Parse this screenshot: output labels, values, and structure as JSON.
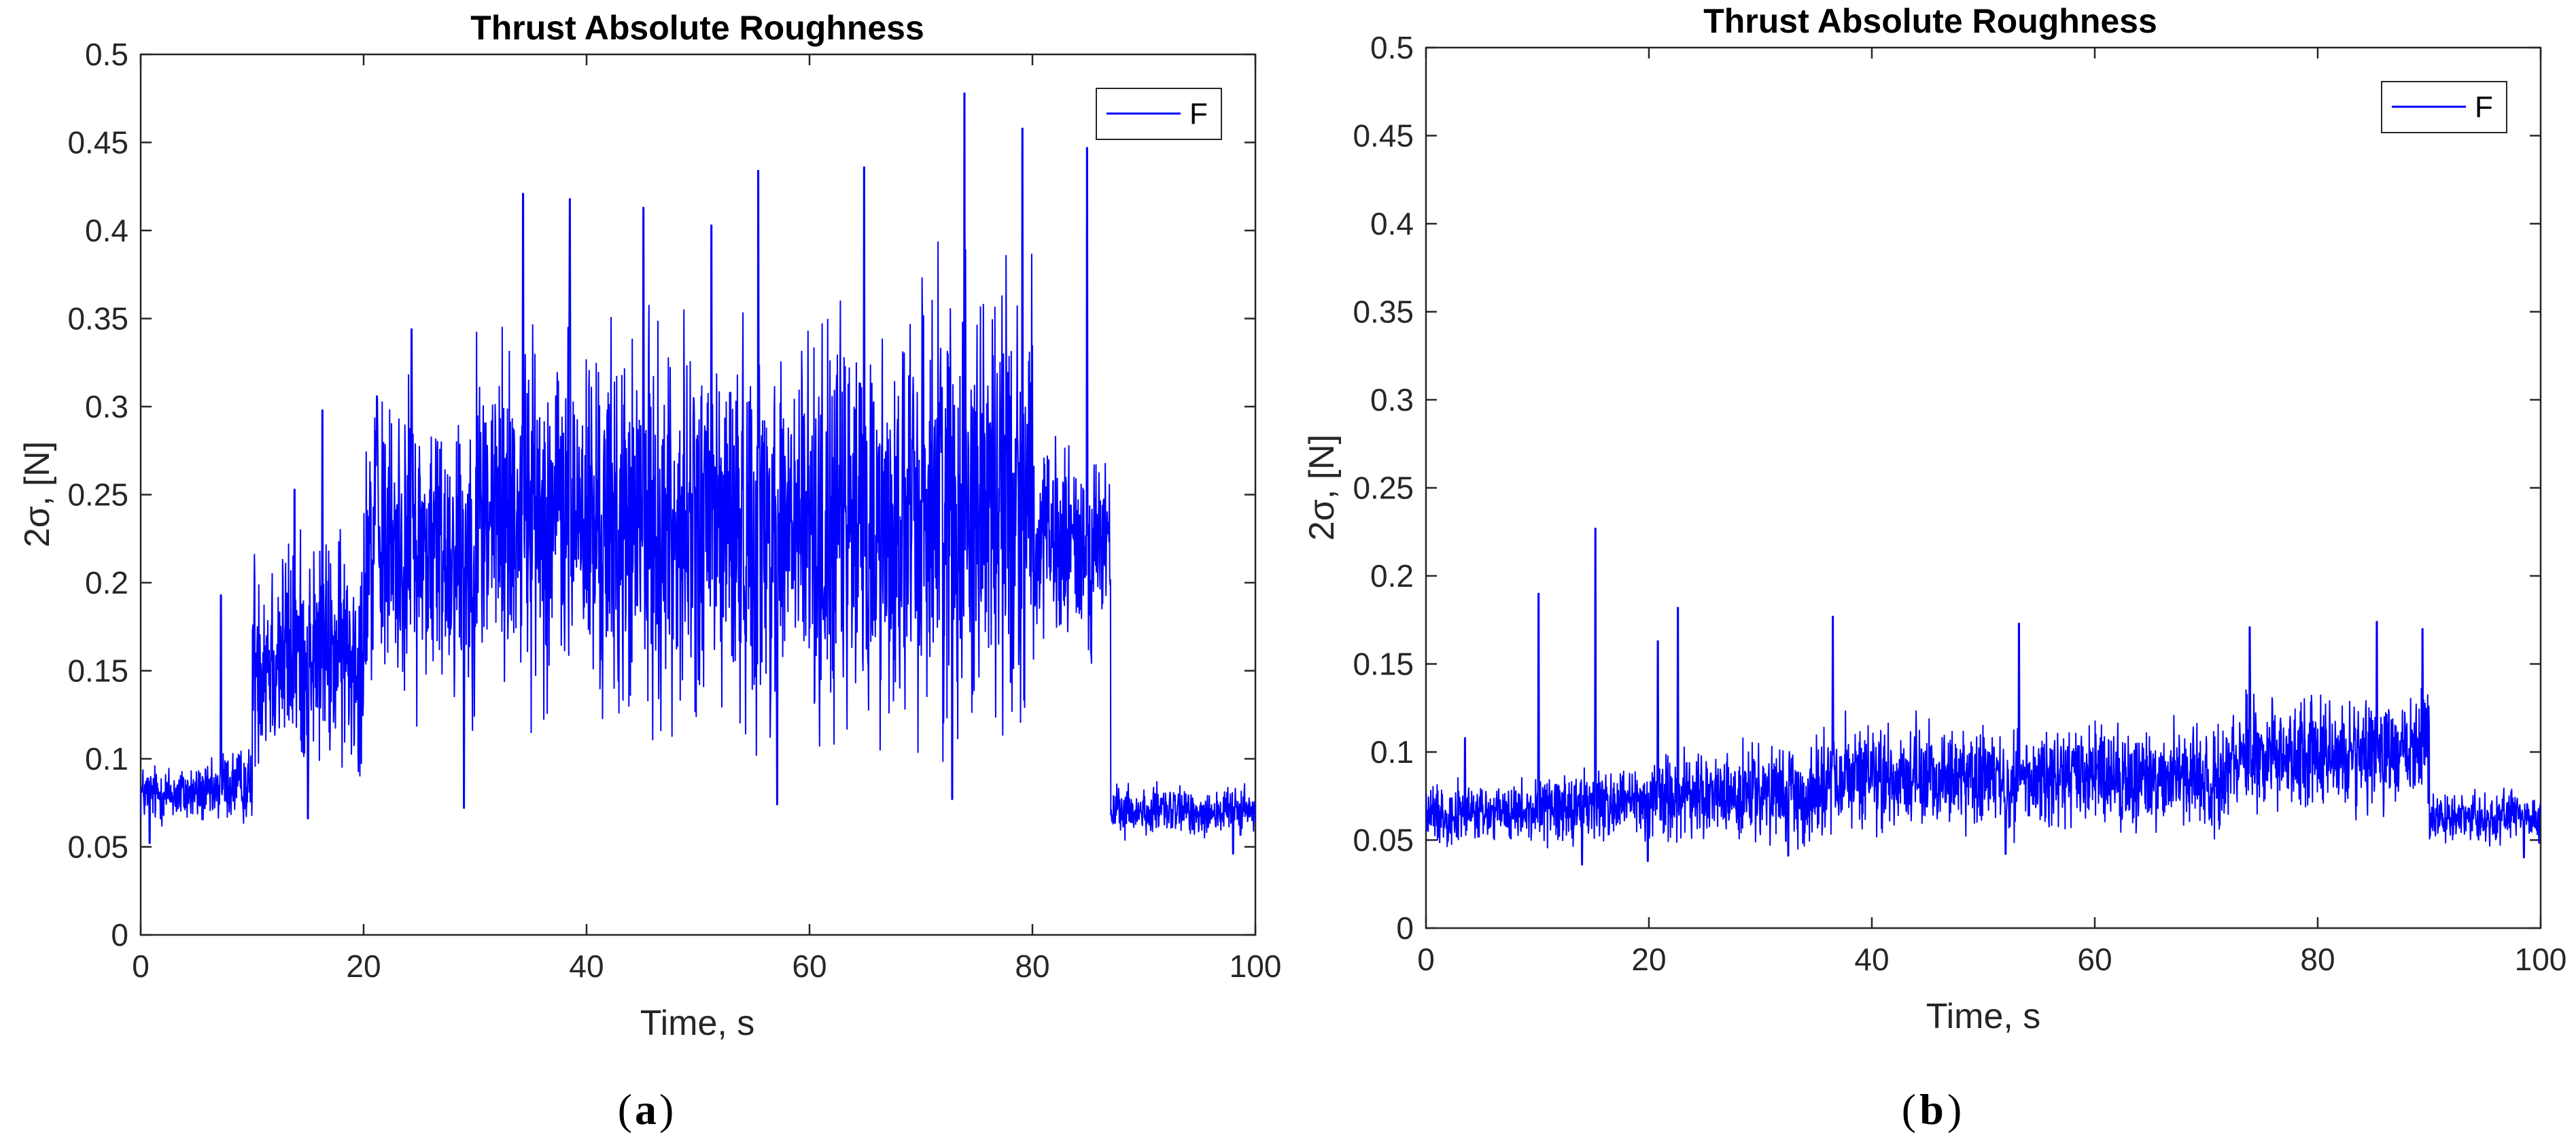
{
  "chart_data": [
    {
      "type": "line",
      "panel_label": "a",
      "title": "Thrust Absolute Roughness",
      "xlabel": "Time, s",
      "ylabel": "2σ, [N]",
      "xlim": [
        0,
        100
      ],
      "ylim": [
        0,
        0.5
      ],
      "xticks": [
        "0",
        "20",
        "40",
        "60",
        "80",
        "100"
      ],
      "yticks": [
        "0",
        "0.05",
        "0.1",
        "0.15",
        "0.2",
        "0.25",
        "0.3",
        "0.35",
        "0.4",
        "0.45",
        "0.5"
      ],
      "legend": {
        "entries": [
          "F"
        ],
        "location": "top-right"
      },
      "grid": false,
      "line_color": "#0000FF",
      "series": [
        {
          "name": "F",
          "segments": [
            {
              "t_start": 0,
              "t_end": 7,
              "mean": 0.08,
              "spread": 0.012
            },
            {
              "t_start": 7,
              "t_end": 10,
              "mean": 0.085,
              "spread": 0.015
            },
            {
              "t_start": 10,
              "t_end": 20,
              "mean": 0.16,
              "spread": 0.045
            },
            {
              "t_start": 20,
              "t_end": 30,
              "mean": 0.22,
              "spread": 0.06
            },
            {
              "t_start": 30,
              "t_end": 40,
              "mean": 0.24,
              "spread": 0.07
            },
            {
              "t_start": 40,
              "t_end": 50,
              "mean": 0.23,
              "spread": 0.075
            },
            {
              "t_start": 50,
              "t_end": 60,
              "mean": 0.23,
              "spread": 0.075
            },
            {
              "t_start": 60,
              "t_end": 70,
              "mean": 0.23,
              "spread": 0.08
            },
            {
              "t_start": 70,
              "t_end": 80,
              "mean": 0.25,
              "spread": 0.09
            },
            {
              "t_start": 80,
              "t_end": 87,
              "mean": 0.22,
              "spread": 0.04
            },
            {
              "t_start": 87,
              "t_end": 100,
              "mean": 0.07,
              "spread": 0.01
            }
          ],
          "peaks": [
            {
              "t": 7.2,
              "v": 0.193
            },
            {
              "t": 13.8,
              "v": 0.253
            },
            {
              "t": 16.3,
              "v": 0.298
            },
            {
              "t": 21.2,
              "v": 0.306
            },
            {
              "t": 24.3,
              "v": 0.344
            },
            {
              "t": 34.3,
              "v": 0.421
            },
            {
              "t": 38.5,
              "v": 0.418
            },
            {
              "t": 45.1,
              "v": 0.413
            },
            {
              "t": 51.2,
              "v": 0.403
            },
            {
              "t": 55.4,
              "v": 0.434
            },
            {
              "t": 64.9,
              "v": 0.436
            },
            {
              "t": 73.9,
              "v": 0.478
            },
            {
              "t": 79.1,
              "v": 0.458
            },
            {
              "t": 84.9,
              "v": 0.447
            }
          ],
          "troughs": [
            {
              "t": 0.8,
              "v": 0.052
            },
            {
              "t": 15.0,
              "v": 0.066
            },
            {
              "t": 29.0,
              "v": 0.072
            },
            {
              "t": 57.1,
              "v": 0.074
            },
            {
              "t": 72.8,
              "v": 0.077
            },
            {
              "t": 98.0,
              "v": 0.046
            }
          ]
        }
      ]
    },
    {
      "type": "line",
      "panel_label": "b",
      "title": "Thrust Absolute Roughness",
      "xlabel": "Time, s",
      "ylabel": "2σ, [N]",
      "xlim": [
        0,
        100
      ],
      "ylim": [
        0,
        0.5
      ],
      "xticks": [
        "0",
        "20",
        "40",
        "60",
        "80",
        "100"
      ],
      "yticks": [
        "0",
        "0.05",
        "0.1",
        "0.15",
        "0.2",
        "0.25",
        "0.3",
        "0.35",
        "0.4",
        "0.45",
        "0.5"
      ],
      "legend": {
        "entries": [
          "F"
        ],
        "location": "top-right"
      },
      "grid": false,
      "line_color": "#0000FF",
      "series": [
        {
          "name": "F",
          "segments": [
            {
              "t_start": 0,
              "t_end": 10,
              "mean": 0.065,
              "spread": 0.012
            },
            {
              "t_start": 10,
              "t_end": 20,
              "mean": 0.07,
              "spread": 0.015
            },
            {
              "t_start": 20,
              "t_end": 35,
              "mean": 0.075,
              "spread": 0.018
            },
            {
              "t_start": 35,
              "t_end": 72,
              "mean": 0.085,
              "spread": 0.02
            },
            {
              "t_start": 72,
              "t_end": 90,
              "mean": 0.1,
              "spread": 0.022
            },
            {
              "t_start": 90,
              "t_end": 100,
              "mean": 0.063,
              "spread": 0.01
            }
          ],
          "peaks": [
            {
              "t": 3.5,
              "v": 0.108
            },
            {
              "t": 10.1,
              "v": 0.19
            },
            {
              "t": 15.2,
              "v": 0.227
            },
            {
              "t": 20.8,
              "v": 0.163
            },
            {
              "t": 22.6,
              "v": 0.182
            },
            {
              "t": 36.5,
              "v": 0.177
            },
            {
              "t": 53.2,
              "v": 0.173
            },
            {
              "t": 73.9,
              "v": 0.171
            },
            {
              "t": 85.3,
              "v": 0.174
            },
            {
              "t": 89.4,
              "v": 0.17
            }
          ],
          "troughs": [
            {
              "t": 14.0,
              "v": 0.036
            },
            {
              "t": 19.9,
              "v": 0.038
            },
            {
              "t": 32.5,
              "v": 0.041
            },
            {
              "t": 52.0,
              "v": 0.042
            },
            {
              "t": 98.5,
              "v": 0.04
            }
          ]
        }
      ]
    }
  ]
}
